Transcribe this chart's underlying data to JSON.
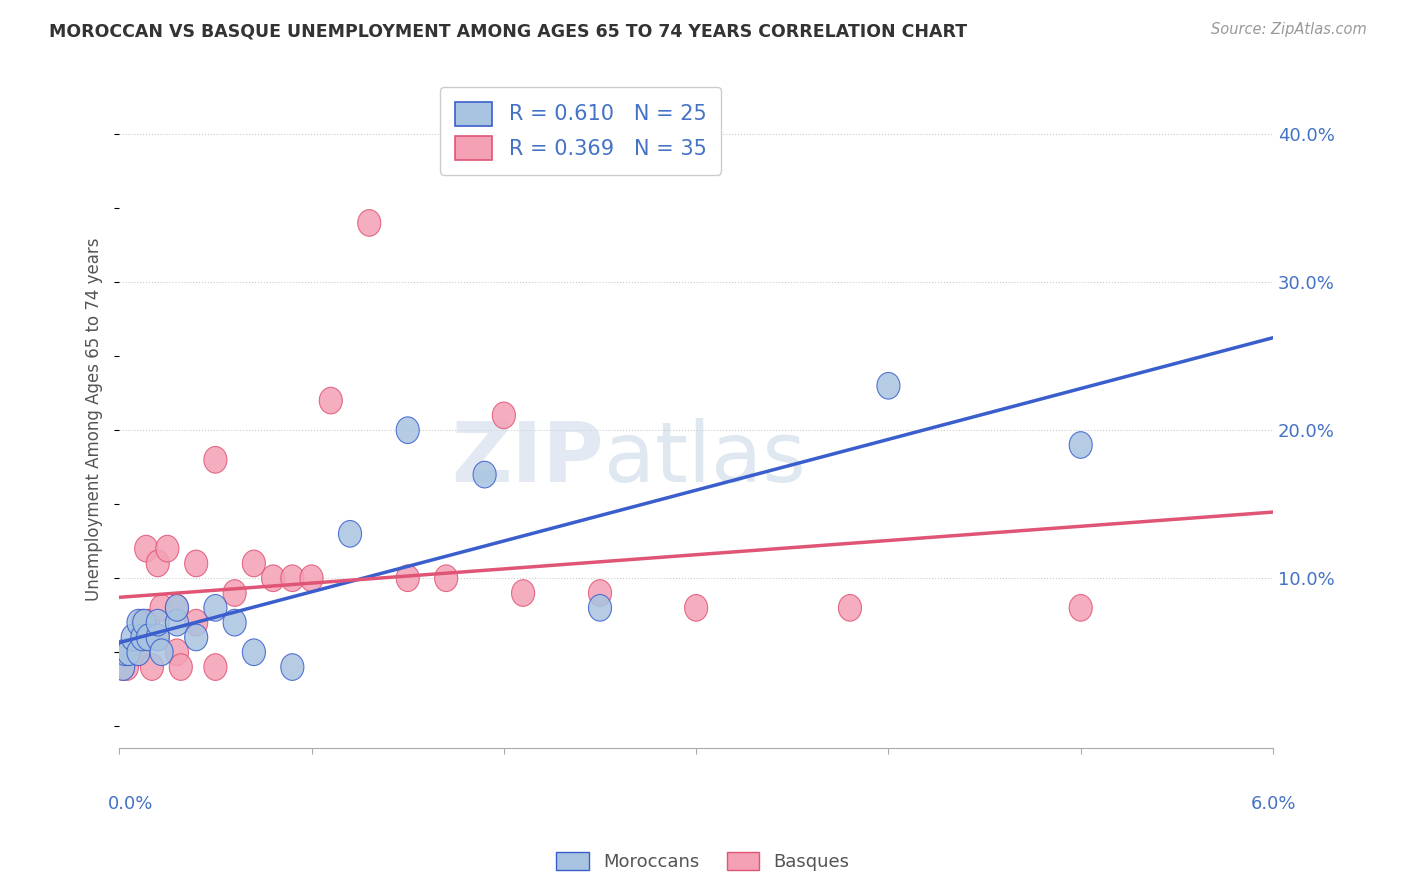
{
  "title": "MOROCCAN VS BASQUE UNEMPLOYMENT AMONG AGES 65 TO 74 YEARS CORRELATION CHART",
  "source": "Source: ZipAtlas.com",
  "ylabel": "Unemployment Among Ages 65 to 74 years",
  "yticks": [
    0.0,
    0.1,
    0.2,
    0.3,
    0.4
  ],
  "ytick_labels": [
    "",
    "10.0%",
    "20.0%",
    "30.0%",
    "40.0%"
  ],
  "xlim": [
    0.0,
    0.06
  ],
  "ylim": [
    -0.015,
    0.43
  ],
  "moroccan_color": "#a8c4e0",
  "basque_color": "#f4a0b5",
  "moroccan_line_color": "#3a5fcd",
  "basque_line_color": "#e05575",
  "moroccan_R": 0.61,
  "moroccan_N": 25,
  "basque_R": 0.369,
  "basque_N": 35,
  "legend_label_moroccan": "Moroccans",
  "legend_label_basque": "Basques",
  "moroccan_x": [
    0.0002,
    0.0003,
    0.0005,
    0.0007,
    0.001,
    0.001,
    0.0012,
    0.0013,
    0.0015,
    0.002,
    0.002,
    0.0022,
    0.003,
    0.003,
    0.004,
    0.005,
    0.006,
    0.007,
    0.009,
    0.012,
    0.015,
    0.019,
    0.025,
    0.04,
    0.05
  ],
  "moroccan_y": [
    0.04,
    0.05,
    0.05,
    0.06,
    0.05,
    0.07,
    0.06,
    0.07,
    0.06,
    0.06,
    0.07,
    0.05,
    0.07,
    0.08,
    0.06,
    0.08,
    0.07,
    0.05,
    0.04,
    0.13,
    0.2,
    0.17,
    0.08,
    0.23,
    0.19
  ],
  "basque_x": [
    0.0002,
    0.0004,
    0.0005,
    0.0007,
    0.001,
    0.0012,
    0.0014,
    0.0015,
    0.0017,
    0.002,
    0.002,
    0.0022,
    0.0025,
    0.003,
    0.003,
    0.0032,
    0.004,
    0.004,
    0.005,
    0.005,
    0.006,
    0.007,
    0.008,
    0.009,
    0.01,
    0.011,
    0.013,
    0.015,
    0.017,
    0.02,
    0.021,
    0.025,
    0.03,
    0.038,
    0.05
  ],
  "basque_y": [
    0.04,
    0.04,
    0.05,
    0.05,
    0.05,
    0.07,
    0.12,
    0.07,
    0.04,
    0.06,
    0.11,
    0.08,
    0.12,
    0.08,
    0.05,
    0.04,
    0.11,
    0.07,
    0.04,
    0.18,
    0.09,
    0.11,
    0.1,
    0.1,
    0.1,
    0.22,
    0.34,
    0.1,
    0.1,
    0.21,
    0.09,
    0.09,
    0.08,
    0.08,
    0.08
  ],
  "watermark_zip": "ZIP",
  "watermark_atlas": "atlas",
  "grid_color": "#cccccc",
  "background_color": "#ffffff",
  "title_color": "#333333",
  "source_color": "#999999",
  "ylabel_color": "#555555",
  "axis_color": "#cccccc",
  "legend_line_color": "#cccccc",
  "tick_label_color": "#4472c4"
}
